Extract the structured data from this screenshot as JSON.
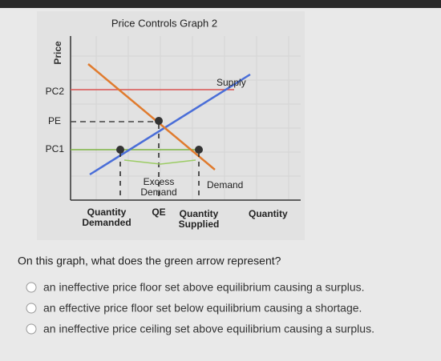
{
  "graph": {
    "title": "Price Controls Graph 2",
    "y_axis_label": "Price",
    "x_axis_label": "Quantity",
    "price_labels": [
      "PC2",
      "PE",
      "PC1"
    ],
    "curve_labels": {
      "supply": "Supply",
      "demand": "Demand"
    },
    "annotation": "Excess\nDemand",
    "quantity_labels": [
      "Quantity\nDemanded",
      "QE",
      "Quantity\nSupplied"
    ]
  },
  "question": "On this graph, what does the green arrow represent?",
  "options": [
    "an ineffective price floor set above equilibrium causing a surplus.",
    "an effective price floor set below equilibrium causing a shortage.",
    "an ineffective price ceiling set above equilibrium causing a surplus."
  ]
}
